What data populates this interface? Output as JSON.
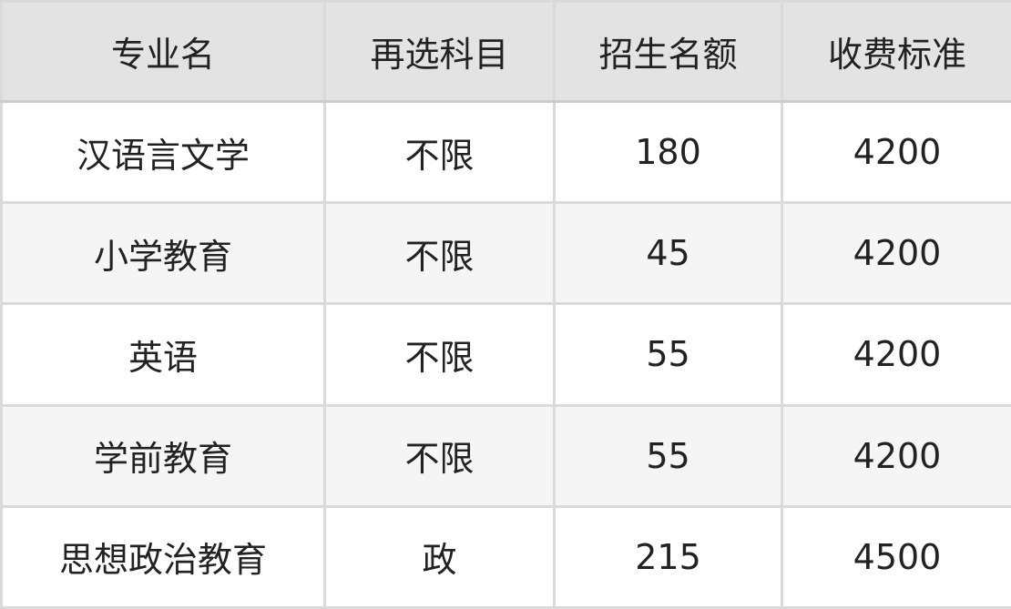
{
  "table": {
    "headers": [
      "专业名",
      "再选科目",
      "招生名额",
      "收费标准"
    ],
    "rows": [
      [
        "汉语言文学",
        "不限",
        "180",
        "4200"
      ],
      [
        "小学教育",
        "不限",
        "45",
        "4200"
      ],
      [
        "英语",
        "不限",
        "55",
        "4200"
      ],
      [
        "学前教育",
        "不限",
        "55",
        "4200"
      ],
      [
        "思想政治教育",
        "政",
        "215",
        "4500"
      ]
    ]
  }
}
